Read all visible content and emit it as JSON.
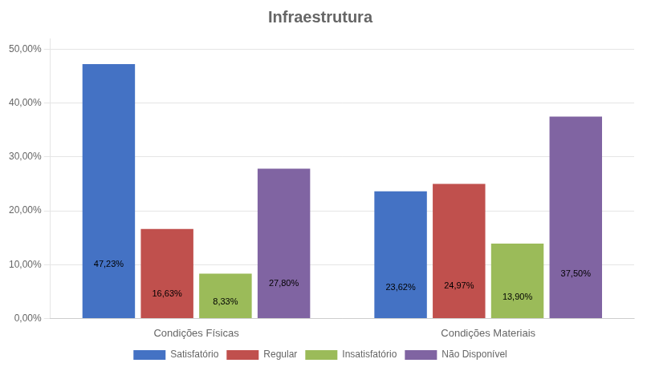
{
  "chart_data": {
    "type": "bar",
    "title": "Infraestrutura",
    "categories": [
      "Condições Físicas",
      "Condições Materiais"
    ],
    "series": [
      {
        "name": "Satisfatório",
        "color": "#4472C4",
        "values": [
          47.23,
          23.62
        ],
        "value_labels": [
          "47,23%",
          "23,62%"
        ]
      },
      {
        "name": "Regular",
        "color": "#C0504D",
        "values": [
          16.63,
          24.97
        ],
        "value_labels": [
          "16,63%",
          "24,97%"
        ]
      },
      {
        "name": "Insatisfatório",
        "color": "#9BBB59",
        "values": [
          8.33,
          13.9
        ],
        "value_labels": [
          "8,33%",
          "13,90%"
        ]
      },
      {
        "name": "Não Disponível",
        "color": "#8064A2",
        "values": [
          27.8,
          37.5
        ],
        "value_labels": [
          "27,80%",
          "37,50%"
        ]
      }
    ],
    "ylim": [
      0,
      52
    ],
    "yticks": [
      {
        "value": 0,
        "label": "0,00%"
      },
      {
        "value": 10,
        "label": "10,00%"
      },
      {
        "value": 20,
        "label": "20,00%"
      },
      {
        "value": 30,
        "label": "30,00%"
      },
      {
        "value": 40,
        "label": "40,00%"
      },
      {
        "value": 50,
        "label": "50,00%"
      }
    ],
    "grid": true,
    "legend": "bottom",
    "data_labels": true
  }
}
